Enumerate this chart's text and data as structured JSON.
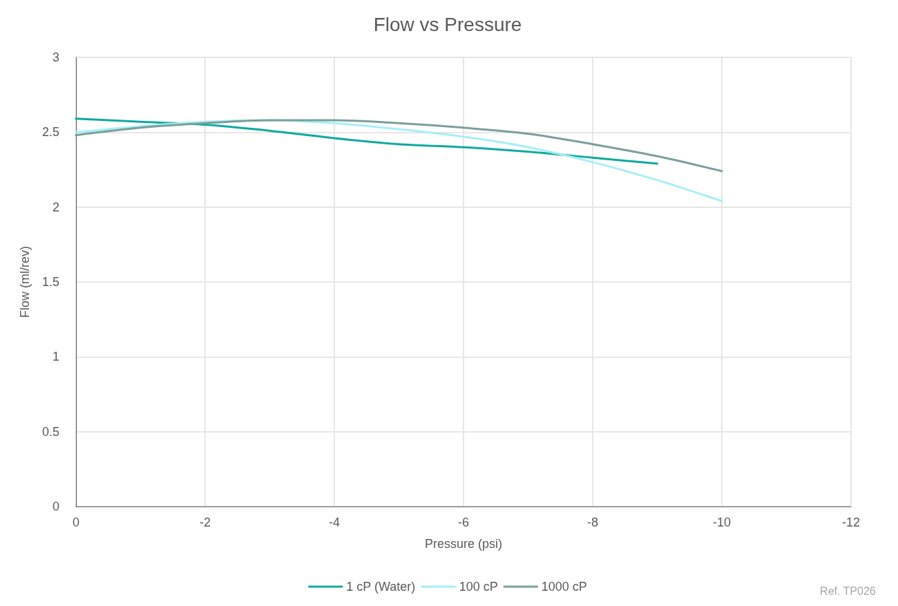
{
  "chart_data": {
    "type": "line",
    "title": "Flow vs Pressure",
    "xlabel": "Pressure (psi)",
    "ylabel": "Flow (ml/rev)",
    "xlim": [
      0,
      -12
    ],
    "xticks": [
      0,
      -2,
      -4,
      -6,
      -8,
      -10,
      -12
    ],
    "ylim": [
      0,
      3
    ],
    "yticks": [
      0,
      0.5,
      1,
      1.5,
      2,
      2.5,
      3
    ],
    "grid": true,
    "legend": "bottom",
    "marker": "none",
    "line_style": "solid",
    "annotations": [
      "Ref. TP026"
    ],
    "series": [
      {
        "name": "1 cP (Water)",
        "color": "#0fa9a0",
        "x": [
          0,
          -1,
          -2,
          -3,
          -4,
          -5,
          -6,
          -7,
          -8,
          -9
        ],
        "values": [
          2.59,
          2.57,
          2.55,
          2.51,
          2.46,
          2.42,
          2.4,
          2.37,
          2.33,
          2.29
        ]
      },
      {
        "name": "100 cP",
        "color": "#a6eef8",
        "x": [
          0,
          -1,
          -2,
          -3,
          -4,
          -5,
          -6,
          -7,
          -8,
          -9,
          -10
        ],
        "values": [
          2.5,
          2.54,
          2.57,
          2.58,
          2.56,
          2.52,
          2.47,
          2.4,
          2.3,
          2.18,
          2.04
        ]
      },
      {
        "name": "1000 cP",
        "color": "#7a9f9a",
        "x": [
          0,
          -1,
          -2,
          -3,
          -4,
          -5,
          -6,
          -7,
          -8,
          -9,
          -10
        ],
        "values": [
          2.48,
          2.53,
          2.56,
          2.58,
          2.58,
          2.56,
          2.53,
          2.49,
          2.42,
          2.34,
          2.24
        ]
      }
    ]
  }
}
